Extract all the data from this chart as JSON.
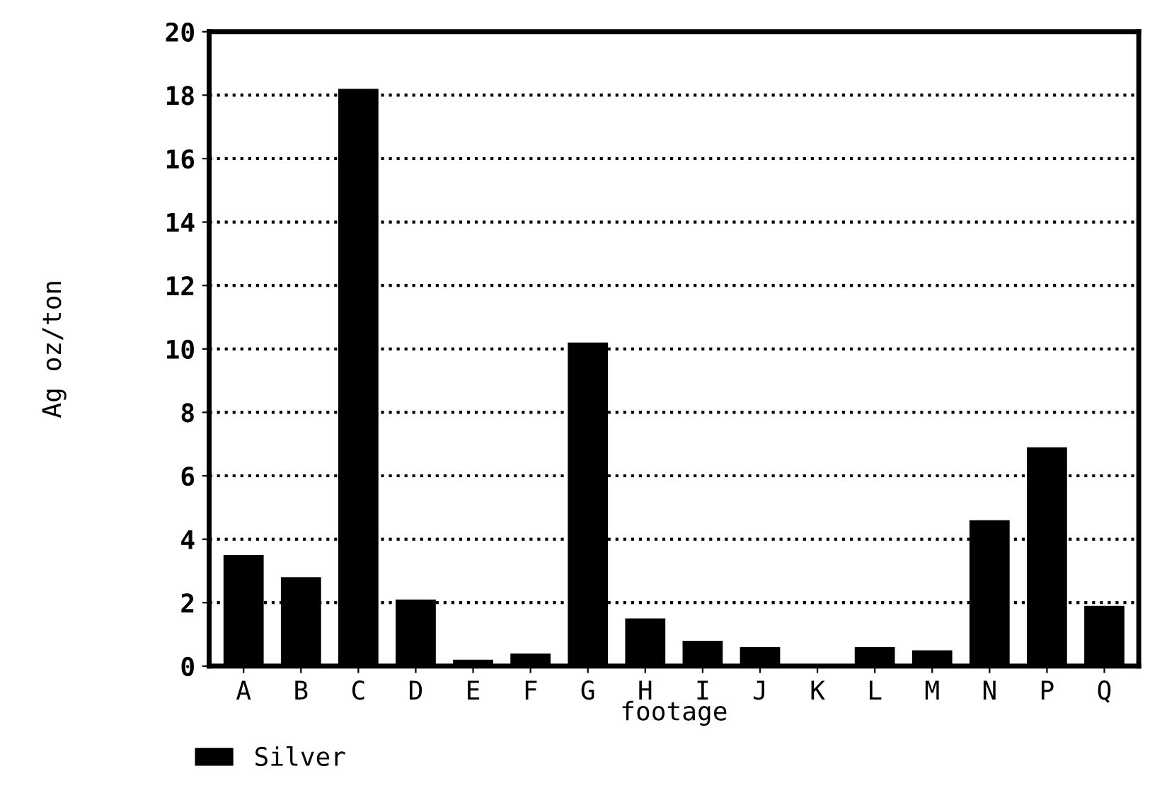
{
  "chart_data": {
    "type": "bar",
    "xlabel": "footage",
    "ylabel": "Ag oz/ton",
    "categories": [
      "A",
      "B",
      "C",
      "D",
      "E",
      "F",
      "G",
      "H",
      "I",
      "J",
      "K",
      "L",
      "M",
      "N",
      "P",
      "Q"
    ],
    "series": [
      {
        "name": "Silver",
        "color": "#000000",
        "values": [
          3.5,
          2.8,
          18.2,
          2.1,
          0.2,
          0.4,
          10.2,
          1.5,
          0.8,
          0.6,
          0,
          0.6,
          0.5,
          4.6,
          6.9,
          1.9
        ]
      }
    ],
    "ylim": [
      0,
      20
    ],
    "yticks": [
      0,
      2,
      4,
      6,
      8,
      10,
      12,
      14,
      16,
      18,
      20
    ],
    "grid": "y",
    "legend": "bottom left"
  }
}
